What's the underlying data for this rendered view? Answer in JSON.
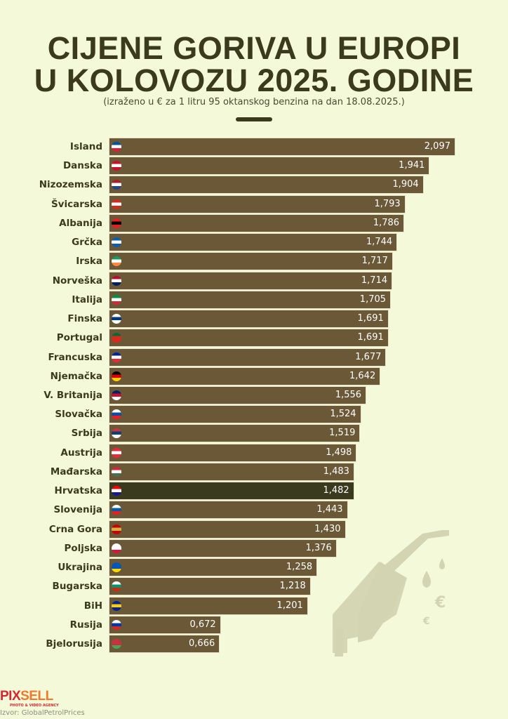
{
  "header": {
    "title_line1": "CIJENE GORIVA U EUROPI",
    "title_line2": "U KOLOVOZU 2025. GODINE",
    "subtitle": "(izraženo u € za 1 litru 95 oktanskog benzina na dan 18.08.2025.)"
  },
  "chart_data": {
    "type": "bar",
    "orientation": "horizontal",
    "title": "CIJENE GORIVA U EUROPI U KOLOVOZU 2025. GODINE",
    "subtitle": "(izraženo u € za 1 litru 95 oktanskog benzina na dan 18.08.2025.)",
    "xlim": [
      0,
      2.097
    ],
    "grid": false,
    "highlight": "Hrvatska",
    "colors": {
      "bar": "#6b5837",
      "highlight": "#3a3a1f",
      "background": "#f3f9d9"
    },
    "categories": [
      "Island",
      "Danska",
      "Nizozemska",
      "Švicarska",
      "Albanija",
      "Grčka",
      "Irska",
      "Norveška",
      "Italija",
      "Finska",
      "Portugal",
      "Francuska",
      "Njemačka",
      "V. Britanija",
      "Slovačka",
      "Srbija",
      "Austrija",
      "Mađarska",
      "Hrvatska",
      "Slovenija",
      "Crna Gora",
      "Poljska",
      "Ukrajina",
      "Bugarska",
      "BiH",
      "Rusija",
      "Bjelorusija"
    ],
    "values": [
      2.097,
      1.941,
      1.904,
      1.793,
      1.786,
      1.744,
      1.717,
      1.714,
      1.705,
      1.691,
      1.691,
      1.677,
      1.642,
      1.556,
      1.524,
      1.519,
      1.498,
      1.483,
      1.482,
      1.443,
      1.43,
      1.376,
      1.258,
      1.218,
      1.201,
      0.672,
      0.666
    ],
    "value_labels": [
      "2,097",
      "1,941",
      "1,904",
      "1,793",
      "1,786",
      "1,744",
      "1,717",
      "1,714",
      "1,705",
      "1,691",
      "1,691",
      "1,677",
      "1,642",
      "1,556",
      "1,524",
      "1,519",
      "1,498",
      "1,483",
      "1,482",
      "1,443",
      "1,430",
      "1,376",
      "1,258",
      "1,218",
      "1,201",
      "0,672",
      "0,666"
    ],
    "flags": [
      [
        "#02529c",
        "#fff",
        "#dc1e35"
      ],
      [
        "#c8102e",
        "#fff",
        "#c8102e"
      ],
      [
        "#ae1c28",
        "#fff",
        "#21468b"
      ],
      [
        "#d52b1e",
        "#fff",
        "#d52b1e"
      ],
      [
        "#e41e20",
        "#000",
        "#e41e20"
      ],
      [
        "#0d5eaf",
        "#fff",
        "#0d5eaf"
      ],
      [
        "#169b62",
        "#fff",
        "#ff883e"
      ],
      [
        "#ba0c2f",
        "#fff",
        "#00205b"
      ],
      [
        "#009246",
        "#fff",
        "#ce2b37"
      ],
      [
        "#fff",
        "#003580",
        "#fff"
      ],
      [
        "#046a38",
        "#da291c",
        "#da291c"
      ],
      [
        "#002395",
        "#fff",
        "#ed2939"
      ],
      [
        "#000",
        "#dd0000",
        "#ffce00"
      ],
      [
        "#012169",
        "#c8102e",
        "#fff"
      ],
      [
        "#fff",
        "#0b4ea2",
        "#ee1c25"
      ],
      [
        "#c6363c",
        "#0c4076",
        "#fff"
      ],
      [
        "#ed2939",
        "#fff",
        "#ed2939"
      ],
      [
        "#ce2939",
        "#fff",
        "#477050"
      ],
      [
        "#ff0000",
        "#fff",
        "#171796"
      ],
      [
        "#fff",
        "#005da4",
        "#ed1c24"
      ],
      [
        "#c40308",
        "#d4af3a",
        "#c40308"
      ],
      [
        "#fff",
        "#fff",
        "#dc143c"
      ],
      [
        "#0057b7",
        "#0057b7",
        "#ffd700"
      ],
      [
        "#fff",
        "#00966e",
        "#d62612"
      ],
      [
        "#002395",
        "#fecb00",
        "#002395"
      ],
      [
        "#fff",
        "#0039a6",
        "#d52b1e"
      ],
      [
        "#c8313e",
        "#c8313e",
        "#4aa657"
      ]
    ]
  },
  "footer": {
    "logo_part1": "PIX",
    "logo_part2": "SELL",
    "logo_tagline": "PHOTO & VIDEO AGENCY",
    "source": "Izvor: GlobalPetrolPrices"
  }
}
